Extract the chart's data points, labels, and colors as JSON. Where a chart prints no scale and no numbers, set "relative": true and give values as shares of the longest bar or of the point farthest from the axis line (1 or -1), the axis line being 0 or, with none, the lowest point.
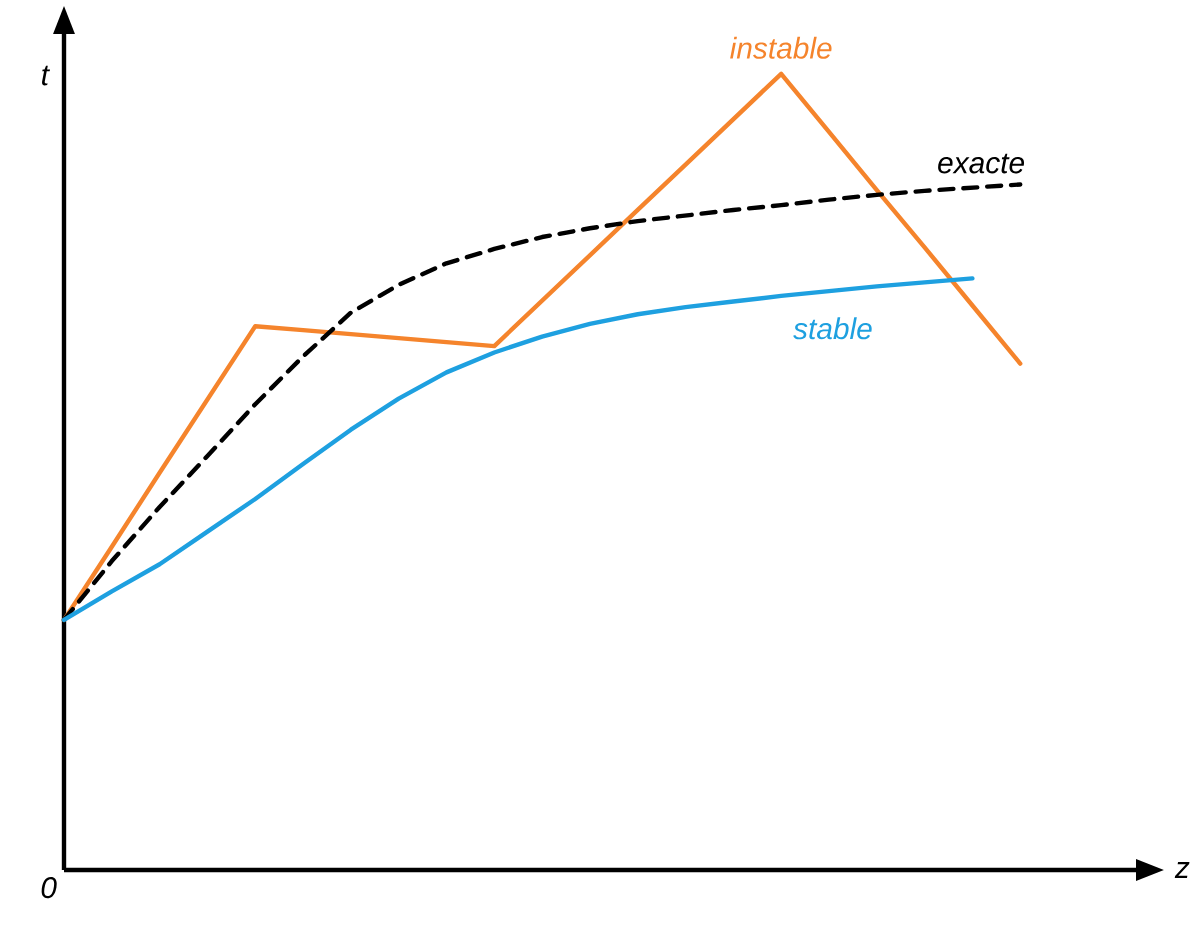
{
  "chart_data": {
    "type": "line",
    "relative": true,
    "xlabel": "z",
    "ylabel": "t",
    "categories": [
      null,
      null,
      null,
      null,
      null,
      null,
      null,
      null,
      null,
      null,
      null,
      null,
      null,
      null,
      null,
      null,
      null,
      null,
      null,
      null,
      null
    ],
    "annotations": [
      "0"
    ],
    "series": [
      {
        "name": "instable",
        "color": "#f5842c",
        "line_style": "solid",
        "values": [
          0.314,
          0.406,
          0.499,
          0.591,
          0.683,
          0.678,
          0.673,
          0.668,
          0.663,
          0.658,
          0.715,
          0.772,
          0.829,
          0.886,
          0.943,
          1,
          0.927,
          0.854,
          0.782,
          0.709,
          0.636
        ]
      },
      {
        "name": "exacte",
        "color": "#000000",
        "line_style": "dashed",
        "values": [
          0.314,
          0.388,
          0.456,
          0.52,
          0.585,
          0.645,
          0.7,
          0.735,
          0.762,
          0.78,
          0.795,
          0.806,
          0.815,
          0.822,
          0.829,
          0.835,
          0.842,
          0.848,
          0.853,
          0.857,
          0.861
        ]
      },
      {
        "name": "stable",
        "color": "#1ea0e0",
        "line_style": "solid",
        "values": [
          0.314,
          0.35,
          0.384,
          0.425,
          0.466,
          0.51,
          0.553,
          0.592,
          0.625,
          0.65,
          0.67,
          0.686,
          0.698,
          0.707,
          0.714,
          0.721,
          0.727,
          0.733,
          0.738,
          0.743,
          null
        ]
      }
    ]
  }
}
